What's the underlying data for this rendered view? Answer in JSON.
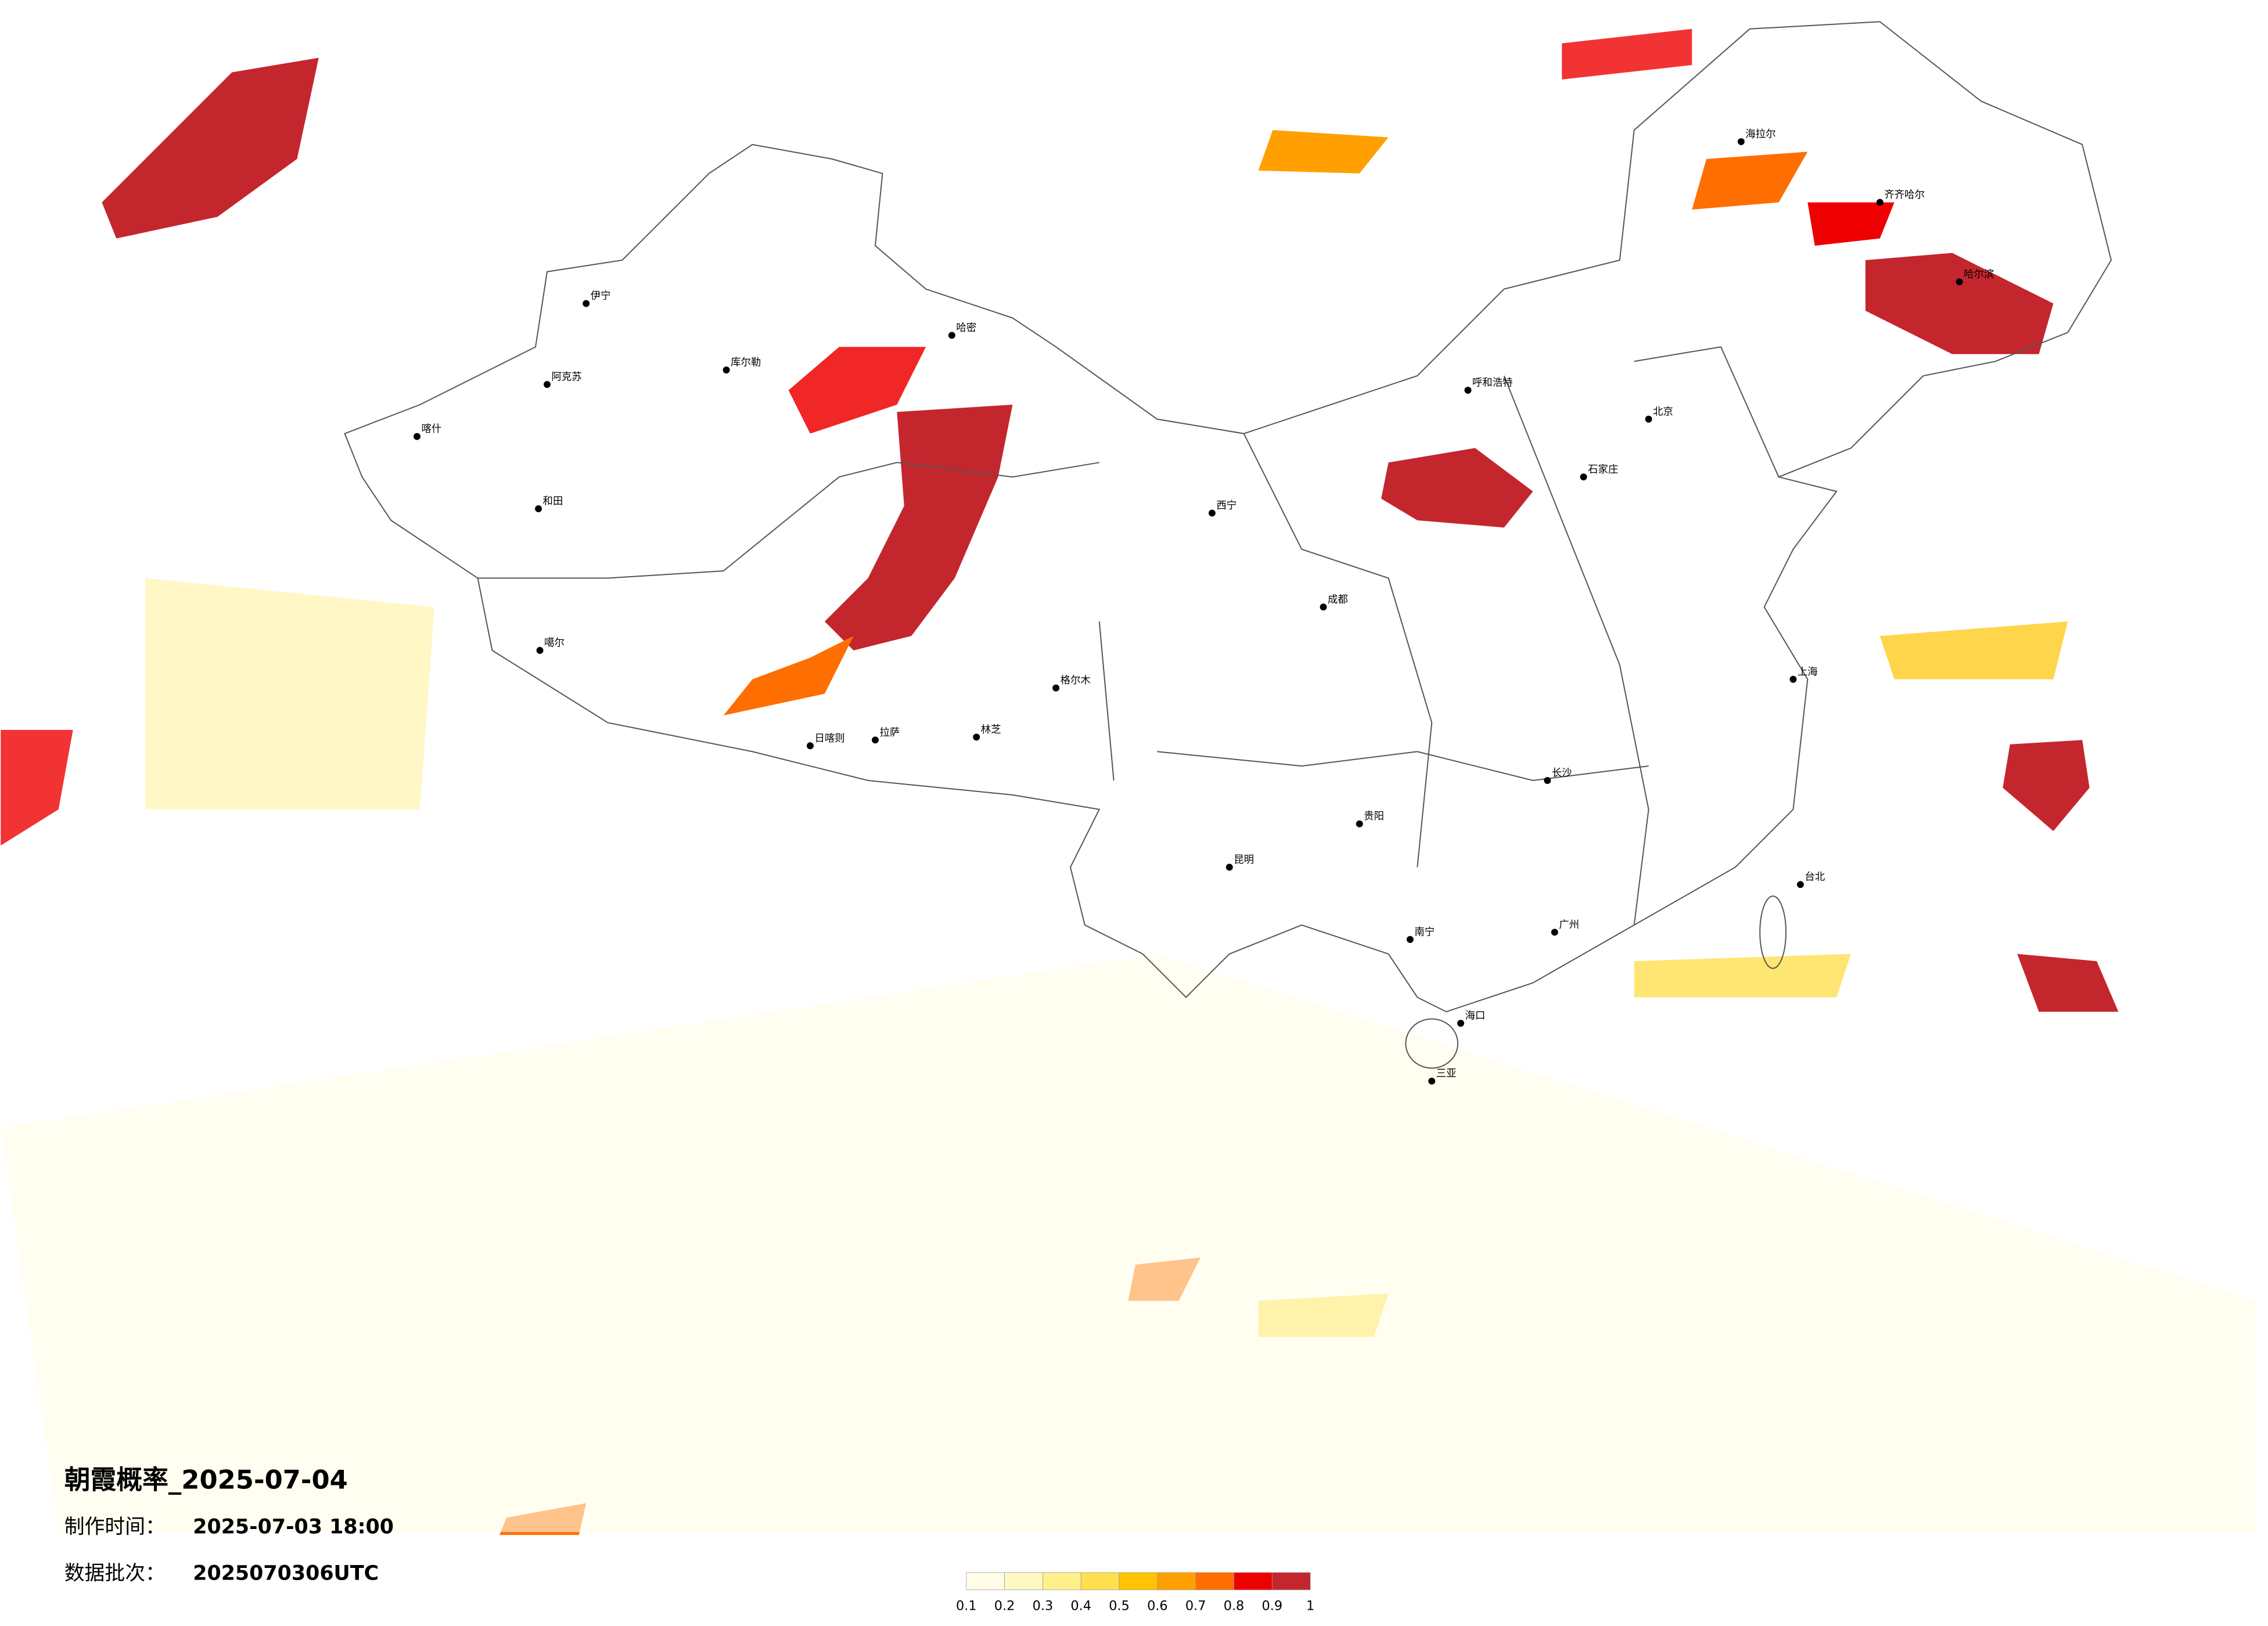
{
  "header": {
    "title": "朝霞概率_2025-07-04",
    "make_time_label": "制作时间：",
    "make_time": "2025-07-03 18:00",
    "batch_label": "数据批次：",
    "batch": "2025070306UTC"
  },
  "colorbar": {
    "ticks": [
      0.1,
      0.2,
      0.3,
      0.4,
      0.5,
      0.6,
      0.7,
      0.8,
      0.9,
      1
    ],
    "colors": [
      "#fffde8",
      "#fff8c4",
      "#fff08c",
      "#ffe050",
      "#ffc300",
      "#ffa000",
      "#ff6e00",
      "#ee0000",
      "#c4262e"
    ]
  },
  "cities": [
    "喀什",
    "和田",
    "伊宁",
    "阿克苏",
    "库尔勒",
    "哈密",
    "拉萨",
    "日喀则",
    "林芝",
    "噶尔",
    "格尔木",
    "西宁",
    "成都",
    "昆明",
    "北京",
    "上海",
    "广州",
    "海口",
    "三亚",
    "哈尔滨",
    "海拉尔",
    "齐齐哈尔",
    "台北",
    "呼和浩特",
    "石家庄",
    "长沙",
    "南宁",
    "贵阳"
  ]
}
